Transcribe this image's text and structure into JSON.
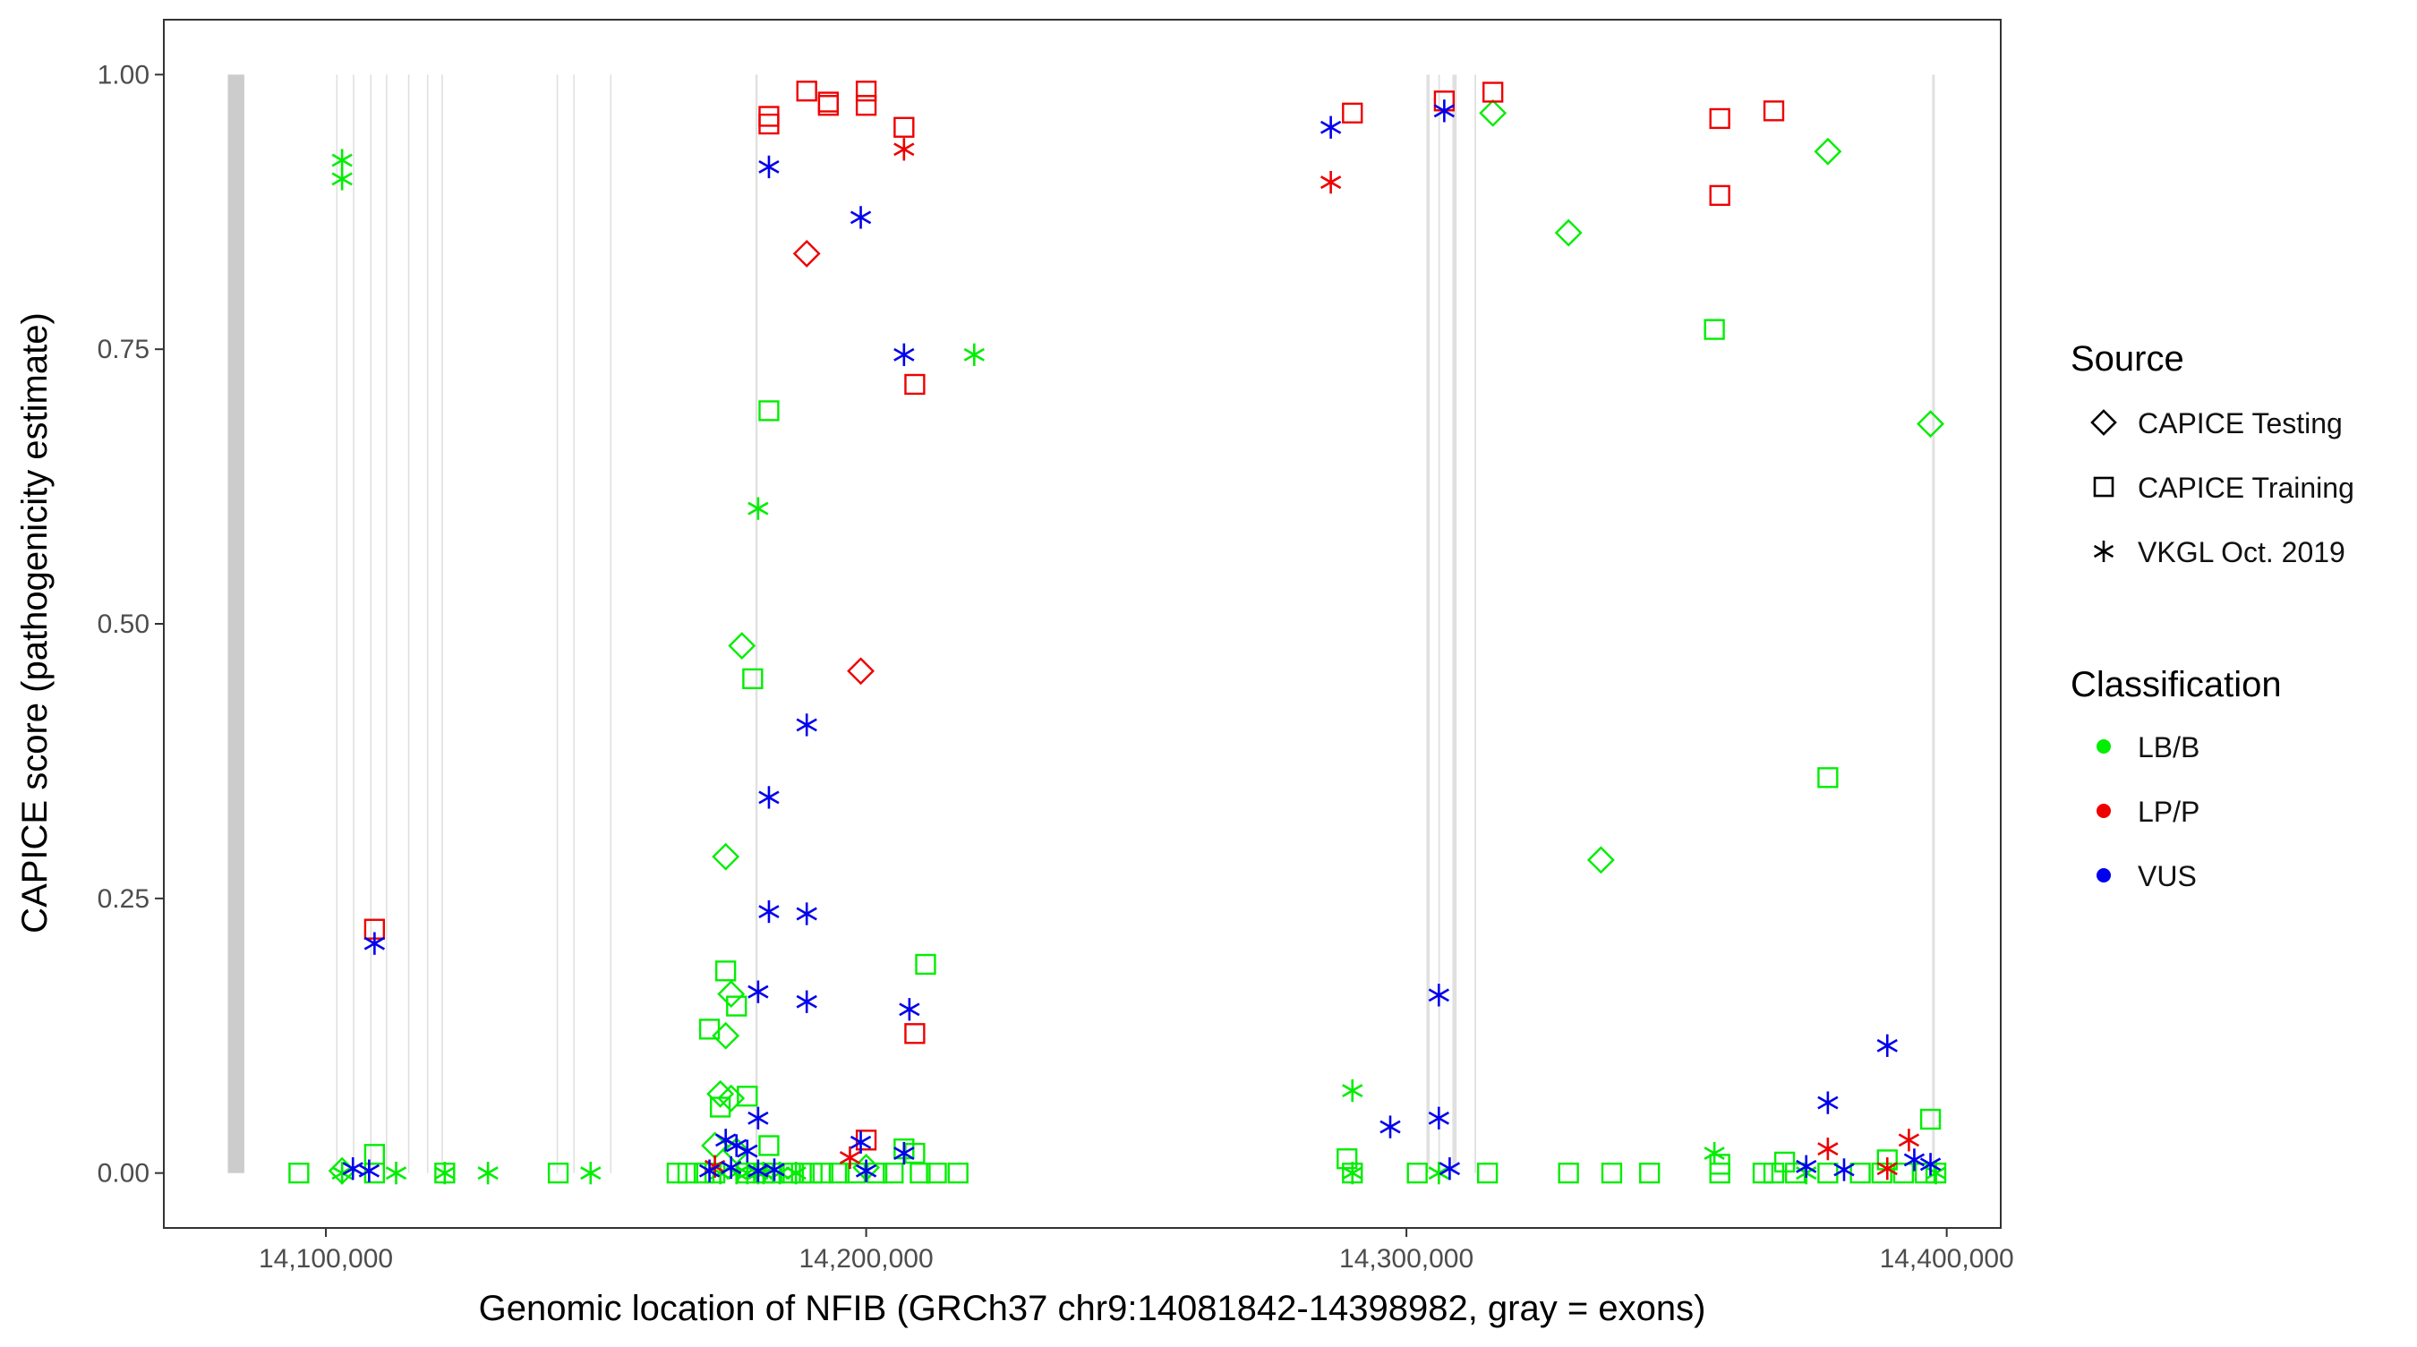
{
  "chart_data": {
    "type": "scatter",
    "xlabel": "Genomic location of NFIB (GRCh37 chr9:14081842-14398982, gray = exons)",
    "ylabel": "CAPICE score (pathogenicity estimate)",
    "xlim": [
      14070000,
      14410000
    ],
    "ylim": [
      -0.05,
      1.05
    ],
    "x_ticks": [
      14100000,
      14200000,
      14300000,
      14400000
    ],
    "x_tick_labels": [
      "14,100,000",
      "14,200,000",
      "14,300,000",
      "14,400,000"
    ],
    "y_ticks": [
      0,
      0.25,
      0.5,
      0.75,
      1.0
    ],
    "y_tick_labels": [
      "0.00",
      "0.25",
      "0.50",
      "0.75",
      "1.00"
    ],
    "grid": false,
    "exons": [
      {
        "start": 14081842,
        "end": 14084900
      },
      {
        "start": 14101900,
        "end": 14102000
      },
      {
        "start": 14105000,
        "end": 14105200
      },
      {
        "start": 14108200,
        "end": 14108400
      },
      {
        "start": 14111100,
        "end": 14111300
      },
      {
        "start": 14115200,
        "end": 14115400
      },
      {
        "start": 14118700,
        "end": 14118900
      },
      {
        "start": 14121400,
        "end": 14121600
      },
      {
        "start": 14142700,
        "end": 14142900
      },
      {
        "start": 14145800,
        "end": 14146000
      },
      {
        "start": 14152600,
        "end": 14152800
      },
      {
        "start": 14179500,
        "end": 14179900
      },
      {
        "start": 14303700,
        "end": 14304300
      },
      {
        "start": 14305900,
        "end": 14306200
      },
      {
        "start": 14308500,
        "end": 14309300
      },
      {
        "start": 14312600,
        "end": 14312900
      },
      {
        "start": 14397300,
        "end": 14397800
      }
    ],
    "legend": {
      "source_title": "Source",
      "source_items": [
        {
          "label": "CAPICE Testing",
          "shape": "diamond"
        },
        {
          "label": "CAPICE Training",
          "shape": "square"
        },
        {
          "label": "VKGL Oct. 2019",
          "shape": "asterisk"
        }
      ],
      "class_title": "Classification",
      "class_items": [
        {
          "label": "LB/B",
          "color": "#00ee00"
        },
        {
          "label": "LP/P",
          "color": "#ee0000"
        },
        {
          "label": "VUS",
          "color": "#0000ee"
        }
      ],
      "placement": "right"
    },
    "colors": {
      "LB/B": "#00ee00",
      "LP/P": "#ee0000",
      "VUS": "#0000ee",
      "exon": "#cccccc",
      "exon_line": "#e0e0e0"
    },
    "series": [
      {
        "name": "CAPICE Testing / LB/B",
        "source": "CAPICE Testing",
        "classification": "LB/B",
        "points": [
          [
            14316000,
            0.965
          ],
          [
            14378000,
            0.93
          ],
          [
            14330000,
            0.856
          ],
          [
            14397000,
            0.682
          ],
          [
            14177000,
            0.48
          ],
          [
            14336000,
            0.285
          ],
          [
            14174000,
            0.288
          ],
          [
            14175000,
            0.163
          ],
          [
            14174000,
            0.125
          ],
          [
            14173000,
            0.072
          ],
          [
            14175000,
            0.068
          ],
          [
            14172000,
            0.025
          ],
          [
            14176000,
            0.02
          ],
          [
            14200000,
            0.005
          ],
          [
            14103000,
            0.002
          ]
        ]
      },
      {
        "name": "CAPICE Testing / LP/P",
        "source": "CAPICE Testing",
        "classification": "LP/P",
        "points": [
          [
            14189000,
            0.837
          ],
          [
            14199000,
            0.457
          ]
        ]
      },
      {
        "name": "CAPICE Training / LB/B",
        "source": "CAPICE Training",
        "classification": "LB/B",
        "points": [
          [
            14182000,
            0.694
          ],
          [
            14357000,
            0.768
          ],
          [
            14179000,
            0.45
          ],
          [
            14378000,
            0.36
          ],
          [
            14211000,
            0.19
          ],
          [
            14174000,
            0.184
          ],
          [
            14171000,
            0.131
          ],
          [
            14176000,
            0.152
          ],
          [
            14173000,
            0.06
          ],
          [
            14178000,
            0.07
          ],
          [
            14397000,
            0.049
          ],
          [
            14182000,
            0.025
          ],
          [
            14109000,
            0.017
          ],
          [
            14289000,
            0.013
          ],
          [
            14358000,
            0.008
          ],
          [
            14370000,
            0.01
          ],
          [
            14389000,
            0.012
          ],
          [
            14207000,
            0.022
          ],
          [
            14209000,
            0.018
          ],
          [
            14095000,
            0
          ],
          [
            14109000,
            0
          ],
          [
            14122000,
            0
          ],
          [
            14143000,
            0
          ],
          [
            14165000,
            0
          ],
          [
            14167000,
            0
          ],
          [
            14170000,
            0
          ],
          [
            14172000,
            0
          ],
          [
            14178000,
            0
          ],
          [
            14181000,
            0
          ],
          [
            14183000,
            0
          ],
          [
            14186000,
            0
          ],
          [
            14188000,
            0
          ],
          [
            14190000,
            0
          ],
          [
            14192000,
            0
          ],
          [
            14195000,
            0
          ],
          [
            14198000,
            0
          ],
          [
            14202000,
            0
          ],
          [
            14205000,
            0
          ],
          [
            14210000,
            0
          ],
          [
            14213000,
            0
          ],
          [
            14217000,
            0
          ],
          [
            14290000,
            0
          ],
          [
            14302000,
            0
          ],
          [
            14315000,
            0
          ],
          [
            14330000,
            0
          ],
          [
            14338000,
            0
          ],
          [
            14345000,
            0
          ],
          [
            14358000,
            0
          ],
          [
            14366000,
            0
          ],
          [
            14368000,
            0
          ],
          [
            14372000,
            0
          ],
          [
            14378000,
            0
          ],
          [
            14384000,
            0
          ],
          [
            14388000,
            0
          ],
          [
            14392000,
            0
          ],
          [
            14396000,
            0
          ],
          [
            14398000,
            0
          ]
        ]
      },
      {
        "name": "CAPICE Training / LP/P",
        "source": "CAPICE Training",
        "classification": "LP/P",
        "points": [
          [
            14189000,
            0.985
          ],
          [
            14200000,
            0.985
          ],
          [
            14193000,
            0.972
          ],
          [
            14200000,
            0.972
          ],
          [
            14193000,
            0.975
          ],
          [
            14182000,
            0.962
          ],
          [
            14182000,
            0.955
          ],
          [
            14207000,
            0.952
          ],
          [
            14209000,
            0.718
          ],
          [
            14109000,
            0.222
          ],
          [
            14209000,
            0.127
          ],
          [
            14290000,
            0.965
          ],
          [
            14307000,
            0.976
          ],
          [
            14316000,
            0.984
          ],
          [
            14368000,
            0.967
          ],
          [
            14358000,
            0.96
          ],
          [
            14358000,
            0.89
          ],
          [
            14200000,
            0.03
          ]
        ]
      },
      {
        "name": "VKGL / LB/B",
        "source": "VKGL Oct. 2019",
        "classification": "LB/B",
        "points": [
          [
            14103000,
            0.922
          ],
          [
            14103000,
            0.905
          ],
          [
            14220000,
            0.745
          ],
          [
            14180000,
            0.605
          ],
          [
            14290000,
            0.075
          ],
          [
            14357000,
            0.018
          ],
          [
            14103000,
            0
          ],
          [
            14113000,
            0
          ],
          [
            14122000,
            0
          ],
          [
            14130000,
            0
          ],
          [
            14149000,
            0
          ],
          [
            14173000,
            0
          ],
          [
            14176000,
            0
          ],
          [
            14178000,
            0
          ],
          [
            14180000,
            0
          ],
          [
            14181000,
            0
          ],
          [
            14184000,
            0
          ],
          [
            14187000,
            0
          ],
          [
            14290000,
            0
          ],
          [
            14306000,
            0
          ],
          [
            14374000,
            0
          ],
          [
            14398000,
            0
          ]
        ]
      },
      {
        "name": "VKGL / LP/P",
        "source": "VKGL Oct. 2019",
        "classification": "LP/P",
        "points": [
          [
            14207000,
            0.932
          ],
          [
            14286000,
            0.902
          ],
          [
            14197000,
            0.014
          ],
          [
            14172000,
            0.006
          ],
          [
            14378000,
            0.022
          ],
          [
            14393000,
            0.03
          ],
          [
            14389000,
            0.004
          ]
        ]
      },
      {
        "name": "VKGL / VUS",
        "source": "VKGL Oct. 2019",
        "classification": "VUS",
        "points": [
          [
            14182000,
            0.916
          ],
          [
            14199000,
            0.87
          ],
          [
            14207000,
            0.745
          ],
          [
            14189000,
            0.408
          ],
          [
            14182000,
            0.342
          ],
          [
            14182000,
            0.238
          ],
          [
            14189000,
            0.236
          ],
          [
            14109000,
            0.209
          ],
          [
            14180000,
            0.165
          ],
          [
            14189000,
            0.156
          ],
          [
            14208000,
            0.149
          ],
          [
            14180000,
            0.05
          ],
          [
            14174000,
            0.03
          ],
          [
            14176000,
            0.025
          ],
          [
            14178000,
            0.02
          ],
          [
            14199000,
            0.028
          ],
          [
            14207000,
            0.018
          ],
          [
            14105000,
            0.004
          ],
          [
            14108000,
            0.002
          ],
          [
            14171000,
            0.002
          ],
          [
            14175000,
            0.005
          ],
          [
            14180000,
            0.002
          ],
          [
            14183000,
            0.003
          ],
          [
            14200000,
            0.002
          ],
          [
            14286000,
            0.952
          ],
          [
            14307000,
            0.967
          ],
          [
            14306000,
            0.162
          ],
          [
            14306000,
            0.05
          ],
          [
            14297000,
            0.042
          ],
          [
            14308000,
            0.004
          ],
          [
            14378000,
            0.064
          ],
          [
            14389000,
            0.116
          ],
          [
            14374000,
            0.006
          ],
          [
            14381000,
            0.003
          ],
          [
            14394000,
            0.012
          ],
          [
            14397000,
            0.008
          ]
        ]
      }
    ]
  }
}
